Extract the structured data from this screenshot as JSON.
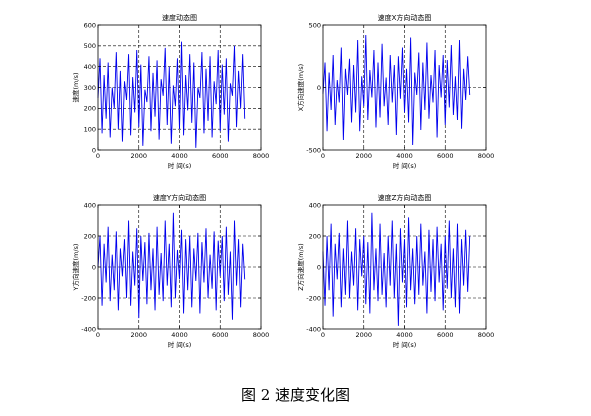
{
  "caption": "图 2  速度变化图",
  "colors": {
    "series": "#0000ee",
    "axis": "#000000",
    "grid": "#000000"
  },
  "chart_data": [
    {
      "type": "line",
      "title": "速度动态图",
      "xlabel": "时 间(s)",
      "ylabel": "速度(m/s)",
      "xlim": [
        0,
        8000
      ],
      "ylim": [
        0,
        600
      ],
      "xticks": [
        0,
        2000,
        4000,
        6000,
        8000
      ],
      "yticks": [
        0,
        100,
        200,
        300,
        400,
        500,
        600
      ],
      "grid": "dashed",
      "series": [
        {
          "x": [
            0,
            100,
            200,
            300,
            400,
            500,
            600,
            700,
            800,
            900,
            1000,
            1100,
            1200,
            1300,
            1400,
            1500,
            1600,
            1700,
            1800,
            1900,
            2000,
            2100,
            2200,
            2300,
            2400,
            2500,
            2600,
            2700,
            2800,
            2900,
            3000,
            3100,
            3200,
            3300,
            3400,
            3500,
            3600,
            3700,
            3800,
            3900,
            4000,
            4100,
            4200,
            4300,
            4400,
            4500,
            4600,
            4700,
            4800,
            4900,
            5000,
            5100,
            5200,
            5300,
            5400,
            5500,
            5600,
            5700,
            5800,
            5900,
            6000,
            6100,
            6200,
            6300,
            6400,
            6500,
            6600,
            6700,
            6800,
            6900,
            7000,
            7100,
            7200
          ],
          "values": [
            250,
            440,
            80,
            360,
            150,
            420,
            60,
            300,
            200,
            470,
            100,
            380,
            40,
            330,
            240,
            460,
            70,
            350,
            180,
            480,
            110,
            410,
            20,
            290,
            230,
            450,
            90,
            370,
            160,
            430,
            50,
            340,
            260,
            490,
            120,
            400,
            30,
            310,
            210,
            440,
            100,
            520,
            70,
            360,
            190,
            460,
            130,
            420,
            10,
            300,
            250,
            470,
            80,
            390,
            140,
            450,
            60,
            330,
            220,
            480,
            90,
            410,
            170,
            440,
            40,
            320,
            260,
            500,
            110,
            380,
            200,
            460,
            150
          ]
        }
      ]
    },
    {
      "type": "line",
      "title": "速度X方向动态图",
      "xlabel": "时 间(s)",
      "ylabel": "X方向速度(m/s)",
      "xlim": [
        0,
        8000
      ],
      "ylim": [
        -500,
        500
      ],
      "xticks": [
        0,
        2000,
        4000,
        6000,
        8000
      ],
      "yticks": [
        -500,
        0,
        500
      ],
      "grid": "dashed",
      "series": [
        {
          "x": [
            0,
            100,
            200,
            300,
            400,
            500,
            600,
            700,
            800,
            900,
            1000,
            1100,
            1200,
            1300,
            1400,
            1500,
            1600,
            1700,
            1800,
            1900,
            2000,
            2100,
            2200,
            2300,
            2400,
            2500,
            2600,
            2700,
            2800,
            2900,
            3000,
            3100,
            3200,
            3300,
            3400,
            3500,
            3600,
            3700,
            3800,
            3900,
            4000,
            4100,
            4200,
            4300,
            4400,
            4500,
            4600,
            4700,
            4800,
            4900,
            5000,
            5100,
            5200,
            5300,
            5400,
            5500,
            5600,
            5700,
            5800,
            5900,
            6000,
            6100,
            6200,
            6300,
            6400,
            6500,
            6600,
            6700,
            6800,
            6900,
            7000,
            7100,
            7200
          ],
          "values": [
            -50,
            200,
            -350,
            120,
            -180,
            260,
            -300,
            60,
            -120,
            320,
            -420,
            150,
            -60,
            230,
            -280,
            180,
            -200,
            380,
            -350,
            90,
            -150,
            420,
            -260,
            140,
            -80,
            300,
            -320,
            200,
            -240,
            350,
            -150,
            80,
            -300,
            260,
            -120,
            180,
            -380,
            250,
            -90,
            320,
            -200,
            150,
            -280,
            400,
            -460,
            120,
            -60,
            280,
            -340,
            200,
            -180,
            360,
            -250,
            100,
            -120,
            300,
            -400,
            180,
            -80,
            260,
            -300,
            220,
            -160,
            340,
            -220,
            90,
            -260,
            380,
            -330,
            150,
            -100,
            250,
            -60
          ]
        }
      ]
    },
    {
      "type": "line",
      "title": "速度Y方向动态图",
      "xlabel": "时 间(s)",
      "ylabel": "Y方向速度(m/s)",
      "xlim": [
        0,
        8000
      ],
      "ylim": [
        -400,
        400
      ],
      "xticks": [
        0,
        2000,
        4000,
        6000,
        8000
      ],
      "yticks": [
        -400,
        -200,
        0,
        200,
        400
      ],
      "grid": "dashed",
      "series": [
        {
          "x": [
            0,
            100,
            200,
            300,
            400,
            500,
            600,
            700,
            800,
            900,
            1000,
            1100,
            1200,
            1300,
            1400,
            1500,
            1600,
            1700,
            1800,
            1900,
            2000,
            2100,
            2200,
            2300,
            2400,
            2500,
            2600,
            2700,
            2800,
            2900,
            3000,
            3100,
            3200,
            3300,
            3400,
            3500,
            3600,
            3700,
            3800,
            3900,
            4000,
            4100,
            4200,
            4300,
            4400,
            4500,
            4600,
            4700,
            4800,
            4900,
            5000,
            5100,
            5200,
            5300,
            5400,
            5500,
            5600,
            5700,
            5800,
            5900,
            6000,
            6100,
            6200,
            6300,
            6400,
            6500,
            6600,
            6700,
            6800,
            6900,
            7000,
            7100,
            7200
          ],
          "values": [
            0,
            200,
            -250,
            150,
            -100,
            260,
            -220,
            80,
            -150,
            230,
            -280,
            120,
            -60,
            180,
            -200,
            300,
            -250,
            100,
            -120,
            250,
            -330,
            200,
            -90,
            160,
            -240,
            220,
            -150,
            120,
            -280,
            260,
            -180,
            90,
            -220,
            300,
            -120,
            150,
            -260,
            350,
            -200,
            110,
            -80,
            240,
            -300,
            180,
            -150,
            200,
            -260,
            120,
            -90,
            220,
            -300,
            160,
            -100,
            250,
            -200,
            80,
            -140,
            230,
            -280,
            170,
            -60,
            200,
            -220,
            260,
            -180,
            100,
            -340,
            300,
            -120,
            180,
            -260,
            150,
            -80
          ]
        }
      ]
    },
    {
      "type": "line",
      "title": "速度Z方向动态图",
      "xlabel": "时 间(s)",
      "ylabel": "Z方向速度(m/s)",
      "xlim": [
        0,
        8000
      ],
      "ylim": [
        -400,
        400
      ],
      "xticks": [
        0,
        2000,
        4000,
        6000,
        8000
      ],
      "yticks": [
        -400,
        -200,
        0,
        200,
        400
      ],
      "grid": "dashed",
      "series": [
        {
          "x": [
            0,
            100,
            200,
            300,
            400,
            500,
            600,
            700,
            800,
            900,
            1000,
            1100,
            1200,
            1300,
            1400,
            1500,
            1600,
            1700,
            1800,
            1900,
            2000,
            2100,
            2200,
            2300,
            2400,
            2500,
            2600,
            2700,
            2800,
            2900,
            3000,
            3100,
            3200,
            3300,
            3400,
            3500,
            3600,
            3700,
            3800,
            3900,
            4000,
            4100,
            4200,
            4300,
            4400,
            4500,
            4600,
            4700,
            4800,
            4900,
            5000,
            5100,
            5200,
            5300,
            5400,
            5500,
            5600,
            5700,
            5800,
            5900,
            6000,
            6100,
            6200,
            6300,
            6400,
            6500,
            6600,
            6700,
            6800,
            6900,
            7000,
            7100,
            7200
          ],
          "values": [
            100,
            -250,
            200,
            -150,
            280,
            -320,
            150,
            -80,
            220,
            -260,
            120,
            -180,
            300,
            -200,
            100,
            -120,
            250,
            -280,
            180,
            -60,
            200,
            -240,
            160,
            -300,
            350,
            -150,
            120,
            -220,
            280,
            -180,
            90,
            -260,
            200,
            -120,
            300,
            -200,
            150,
            -380,
            250,
            -100,
            180,
            -260,
            320,
            -150,
            120,
            -240,
            200,
            -180,
            280,
            -120,
            100,
            -300,
            240,
            -160,
            180,
            -220,
            260,
            -100,
            150,
            -280,
            200,
            -140,
            300,
            -200,
            120,
            -260,
            280,
            -300,
            180,
            -120,
            240,
            -160,
            200
          ]
        }
      ]
    }
  ]
}
